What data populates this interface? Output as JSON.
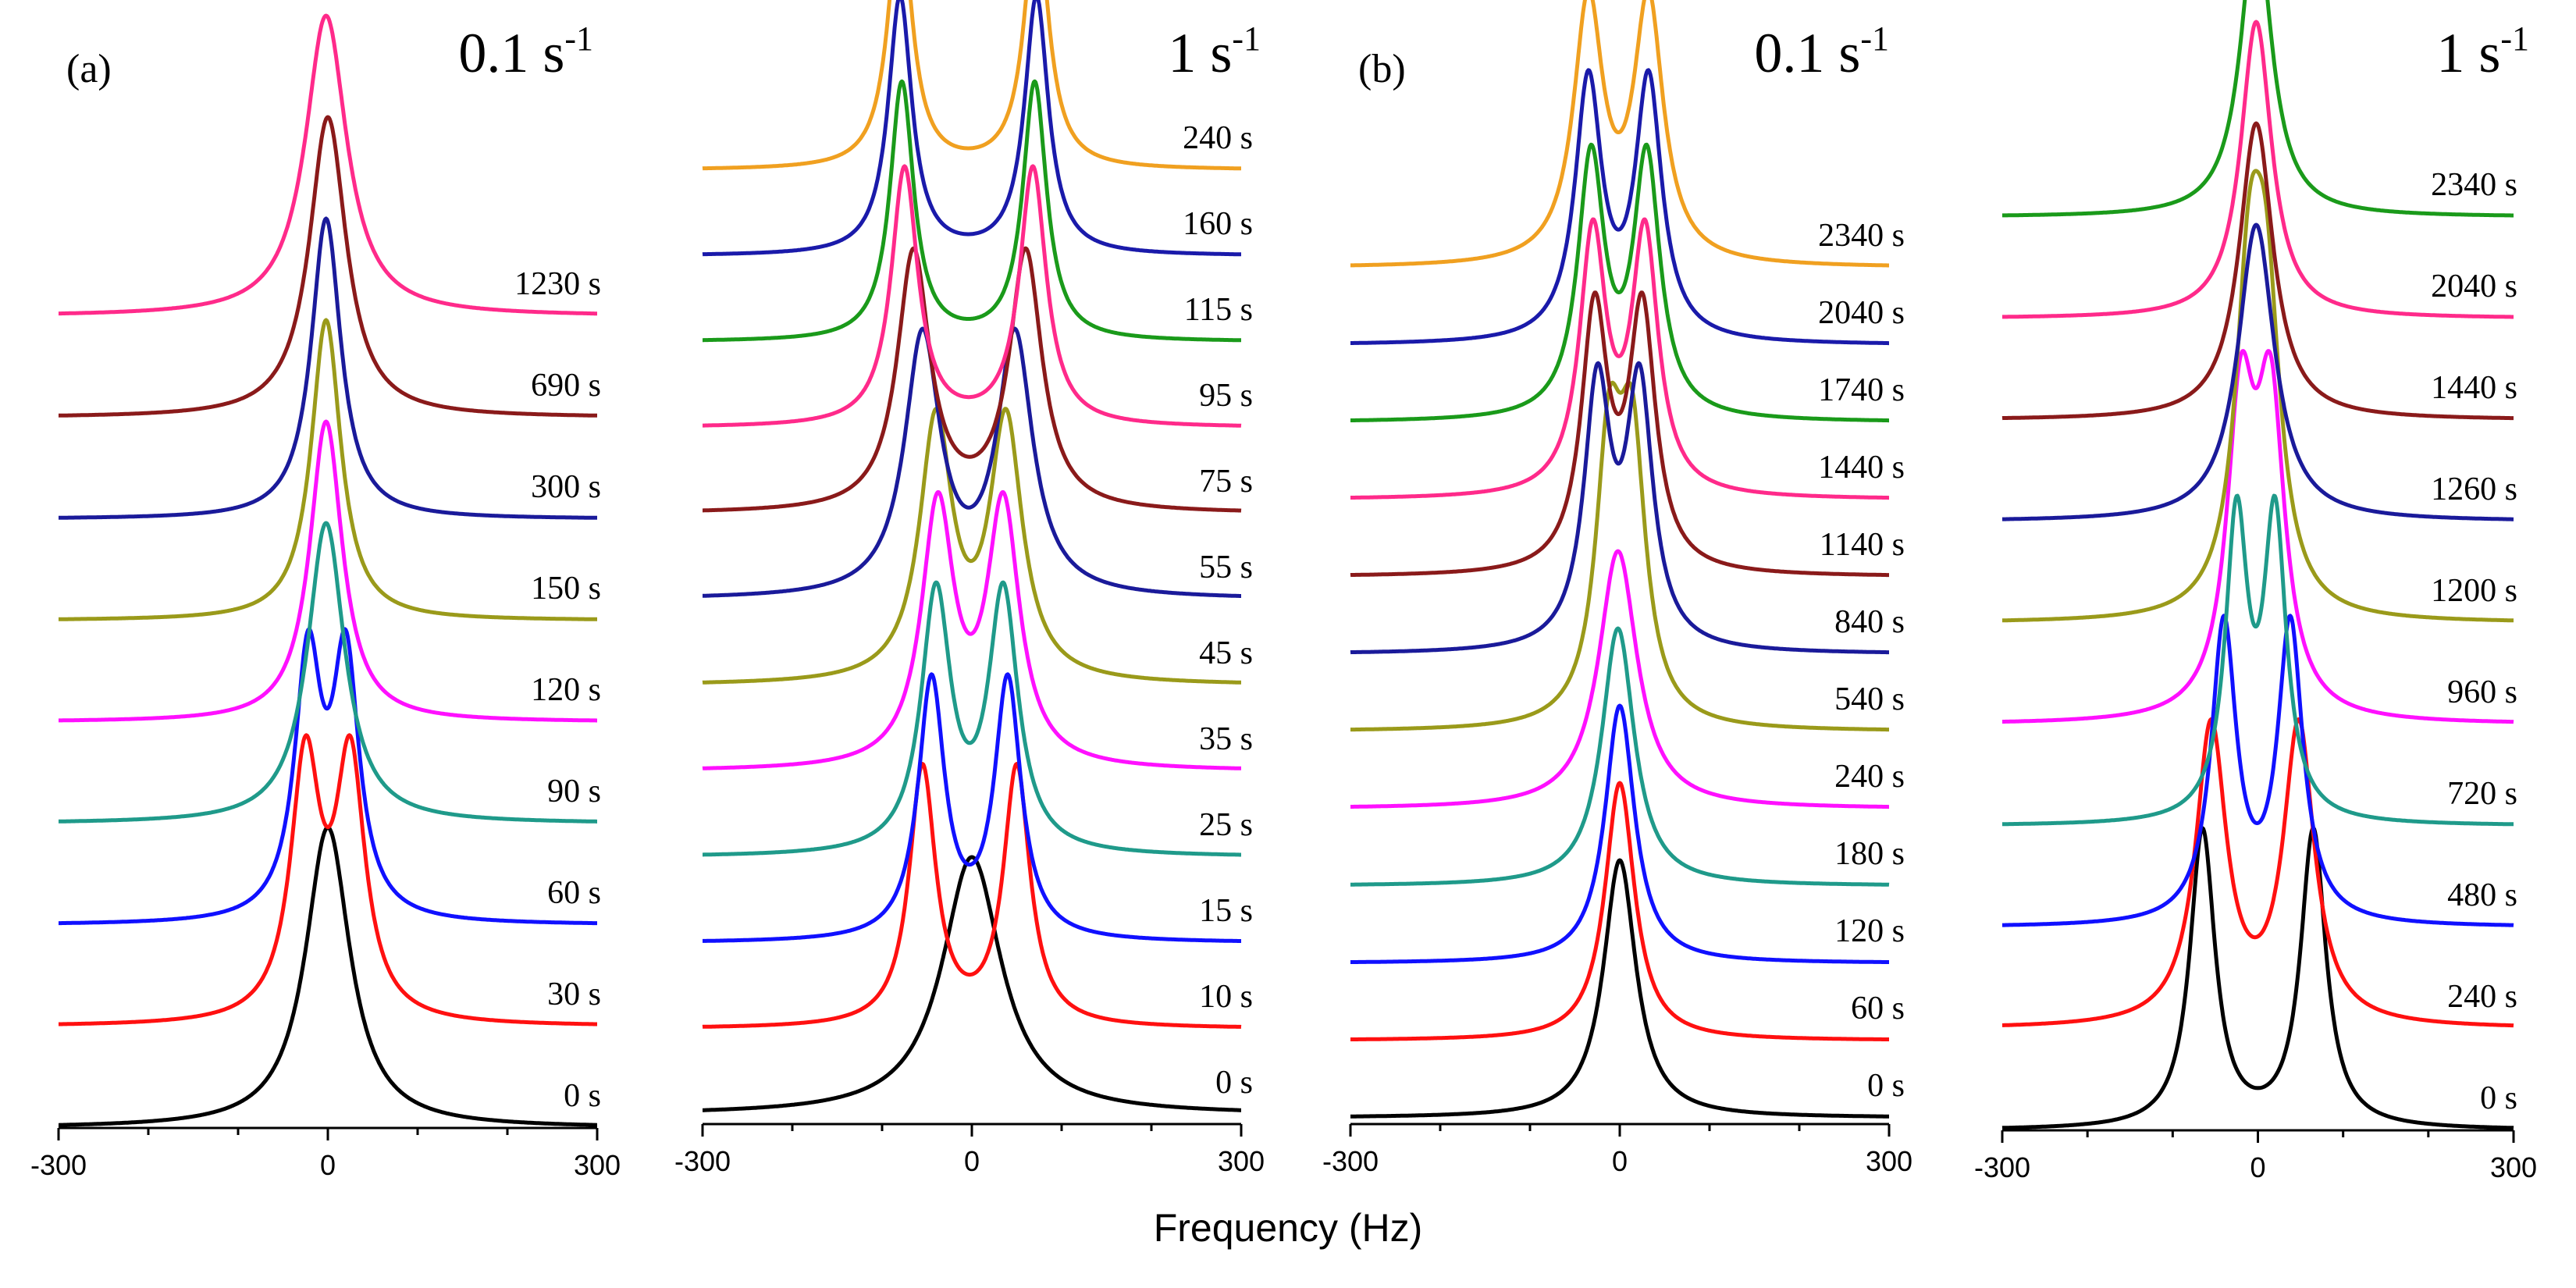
{
  "chart_data": [
    {
      "type": "line",
      "panel_letter": "(a)",
      "rate": "0.1 s",
      "rate_exp": "-1",
      "xlim": [
        -300,
        300
      ],
      "xticks": [
        "-300",
        "0",
        "300"
      ],
      "series": [
        {
          "name": "0 s",
          "label": "0 s",
          "color": "#000000",
          "peaks": [
            [
              0,
              1.0,
              30
            ]
          ]
        },
        {
          "name": "30 s",
          "label": "30 s",
          "color": "#ff1010",
          "peaks": [
            [
              -25,
              0.85,
              20
            ],
            [
              25,
              0.85,
              20
            ]
          ]
        },
        {
          "name": "60 s",
          "label": "60 s",
          "color": "#1010ff",
          "peaks": [
            [
              -22,
              0.85,
              18
            ],
            [
              20,
              0.85,
              18
            ]
          ]
        },
        {
          "name": "90 s",
          "label": "90 s",
          "color": "#1f9a8a",
          "peaks": [
            [
              -2,
              1.0,
              25
            ]
          ]
        },
        {
          "name": "120 s",
          "label": "120 s",
          "color": "#ff10ff",
          "peaks": [
            [
              -2,
              1.0,
              22
            ]
          ]
        },
        {
          "name": "150 s",
          "label": "150 s",
          "color": "#9a9a1a",
          "peaks": [
            [
              -2,
              1.0,
              20
            ]
          ]
        },
        {
          "name": "300 s",
          "label": "300 s",
          "color": "#1a1a9a",
          "peaks": [
            [
              -2,
              1.0,
              20
            ]
          ]
        },
        {
          "name": "690 s",
          "label": "690 s",
          "color": "#8a1a1a",
          "peaks": [
            [
              0,
              1.0,
              25
            ]
          ]
        },
        {
          "name": "1230 s",
          "label": "1230 s",
          "color": "#ff2a8a",
          "peaks": [
            [
              -2,
              1.0,
              28
            ]
          ]
        }
      ]
    },
    {
      "type": "line",
      "panel_letter": "",
      "rate": "1 s",
      "rate_exp": "-1",
      "xlim": [
        -300,
        300
      ],
      "xticks": [
        "-300",
        "0",
        "300"
      ],
      "series": [
        {
          "name": "0 s",
          "label": "0 s",
          "color": "#000000",
          "peaks": [
            [
              0,
              1.0,
              40
            ]
          ]
        },
        {
          "name": "10 s",
          "label": "10 s",
          "color": "#ff1010",
          "peaks": [
            [
              -55,
              1.0,
              18
            ],
            [
              50,
              1.0,
              18
            ]
          ]
        },
        {
          "name": "15 s",
          "label": "15 s",
          "color": "#1010ff",
          "peaks": [
            [
              -45,
              1.0,
              18
            ],
            [
              40,
              1.0,
              18
            ]
          ]
        },
        {
          "name": "25 s",
          "label": "25 s",
          "color": "#1f9a8a",
          "peaks": [
            [
              -40,
              1.0,
              20
            ],
            [
              35,
              1.0,
              20
            ]
          ]
        },
        {
          "name": "35 s",
          "label": "35 s",
          "color": "#ff10ff",
          "peaks": [
            [
              -38,
              1.0,
              22
            ],
            [
              35,
              1.0,
              22
            ]
          ]
        },
        {
          "name": "45 s",
          "label": "45 s",
          "color": "#9a9a1a",
          "peaks": [
            [
              -40,
              1.0,
              22
            ],
            [
              38,
              1.0,
              22
            ]
          ]
        },
        {
          "name": "55 s",
          "label": "55 s",
          "color": "#1a1a9a",
          "peaks": [
            [
              -55,
              1.0,
              24
            ],
            [
              48,
              1.0,
              24
            ]
          ]
        },
        {
          "name": "75 s",
          "label": "75 s",
          "color": "#8a1a1a",
          "peaks": [
            [
              -65,
              1.0,
              22
            ],
            [
              60,
              1.0,
              22
            ]
          ]
        },
        {
          "name": "95 s",
          "label": "95 s",
          "color": "#ff2a8a",
          "peaks": [
            [
              -75,
              1.0,
              18
            ],
            [
              68,
              1.0,
              18
            ]
          ]
        },
        {
          "name": "115 s",
          "label": "115 s",
          "color": "#1a9a1a",
          "peaks": [
            [
              -78,
              1.0,
              16
            ],
            [
              70,
              1.0,
              16
            ]
          ]
        },
        {
          "name": "160 s",
          "label": "160 s",
          "color": "#1a1aaa",
          "peaks": [
            [
              -80,
              1.0,
              16
            ],
            [
              72,
              1.0,
              16
            ]
          ]
        },
        {
          "name": "240 s",
          "label": "240 s",
          "color": "#f0a020",
          "peaks": [
            [
              -80,
              1.0,
              16
            ],
            [
              72,
              1.0,
              16
            ]
          ]
        }
      ]
    },
    {
      "type": "line",
      "panel_letter": "(b)",
      "rate": "0.1 s",
      "rate_exp": "-1",
      "xlim": [
        -300,
        300
      ],
      "xticks": [
        "-300",
        "0",
        "300"
      ],
      "series": [
        {
          "name": "0 s",
          "label": "0 s",
          "color": "#000000",
          "peaks": [
            [
              0,
              1.0,
              22
            ]
          ]
        },
        {
          "name": "60 s",
          "label": "60 s",
          "color": "#ff1010",
          "peaks": [
            [
              0,
              1.0,
              20
            ]
          ]
        },
        {
          "name": "120 s",
          "label": "120 s",
          "color": "#1010ff",
          "peaks": [
            [
              0,
              1.0,
              20
            ]
          ]
        },
        {
          "name": "180 s",
          "label": "180 s",
          "color": "#1f9a8a",
          "peaks": [
            [
              -2,
              1.0,
              22
            ]
          ]
        },
        {
          "name": "240 s",
          "label": "240 s",
          "color": "#ff10ff",
          "peaks": [
            [
              -2,
              1.0,
              26
            ]
          ]
        },
        {
          "name": "540 s",
          "label": "540 s",
          "color": "#9a9a1a",
          "peaks": [
            [
              -12,
              1.0,
              18
            ],
            [
              14,
              1.0,
              18
            ]
          ]
        },
        {
          "name": "840 s",
          "label": "840 s",
          "color": "#1a1a9a",
          "peaks": [
            [
              -25,
              1.0,
              18
            ],
            [
              22,
              1.0,
              18
            ]
          ]
        },
        {
          "name": "1140 s",
          "label": "1140 s",
          "color": "#8a1a1a",
          "peaks": [
            [
              -28,
              1.0,
              18
            ],
            [
              25,
              1.0,
              18
            ]
          ]
        },
        {
          "name": "1440 s",
          "label": "1440 s",
          "color": "#ff2a8a",
          "peaks": [
            [
              -30,
              1.0,
              18
            ],
            [
              28,
              1.0,
              18
            ]
          ]
        },
        {
          "name": "1740 s",
          "label": "1740 s",
          "color": "#1a9a1a",
          "peaks": [
            [
              -32,
              1.0,
              18
            ],
            [
              30,
              1.0,
              18
            ]
          ]
        },
        {
          "name": "2040 s",
          "label": "2040 s",
          "color": "#1a1aaa",
          "peaks": [
            [
              -35,
              1.0,
              18
            ],
            [
              32,
              1.0,
              18
            ]
          ]
        },
        {
          "name": "2340 s",
          "label": "2340 s",
          "color": "#f0a020",
          "peaks": [
            [
              -35,
              1.0,
              20
            ],
            [
              32,
              1.0,
              20
            ]
          ]
        }
      ]
    },
    {
      "type": "line",
      "panel_letter": "",
      "rate": "1 s",
      "rate_exp": "-1",
      "xlim": [
        -300,
        300
      ],
      "xticks": [
        "-300",
        "0",
        "300"
      ],
      "series": [
        {
          "name": "0 s",
          "label": "0 s",
          "color": "#000000",
          "peaks": [
            [
              -65,
              1.0,
              18
            ],
            [
              65,
              1.0,
              18
            ]
          ]
        },
        {
          "name": "240 s",
          "label": "240 s",
          "color": "#ff1010",
          "peaks": [
            [
              -55,
              1.0,
              22
            ],
            [
              48,
              1.0,
              22
            ]
          ]
        },
        {
          "name": "480 s",
          "label": "480 s",
          "color": "#1010ff",
          "peaks": [
            [
              -40,
              1.0,
              18
            ],
            [
              38,
              1.0,
              18
            ]
          ]
        },
        {
          "name": "720 s",
          "label": "720 s",
          "color": "#1f9a8a",
          "peaks": [
            [
              -25,
              1.0,
              16
            ],
            [
              20,
              1.0,
              16
            ]
          ]
        },
        {
          "name": "960 s",
          "label": "960 s",
          "color": "#ff10ff",
          "peaks": [
            [
              -20,
              1.0,
              20
            ],
            [
              15,
              1.0,
              20
            ]
          ]
        },
        {
          "name": "1200 s",
          "label": "1200 s",
          "color": "#9a9a1a",
          "peaks": [
            [
              -10,
              1.0,
              20
            ],
            [
              10,
              0.9,
              20
            ]
          ]
        },
        {
          "name": "1260 s",
          "label": "1260 s",
          "color": "#1a1a9a",
          "peaks": [
            [
              -2,
              1.0,
              26
            ]
          ]
        },
        {
          "name": "1440 s",
          "label": "1440 s",
          "color": "#8a1a1a",
          "peaks": [
            [
              -2,
              1.0,
              24
            ]
          ]
        },
        {
          "name": "2040 s",
          "label": "2040 s",
          "color": "#ff2a8a",
          "peaks": [
            [
              -2,
              1.0,
              22
            ]
          ]
        },
        {
          "name": "2340 s",
          "label": "2340 s",
          "color": "#1a9a1a",
          "peaks": [
            [
              -2,
              1.0,
              22
            ]
          ]
        }
      ]
    }
  ],
  "xlabel": "Frequency (Hz)"
}
